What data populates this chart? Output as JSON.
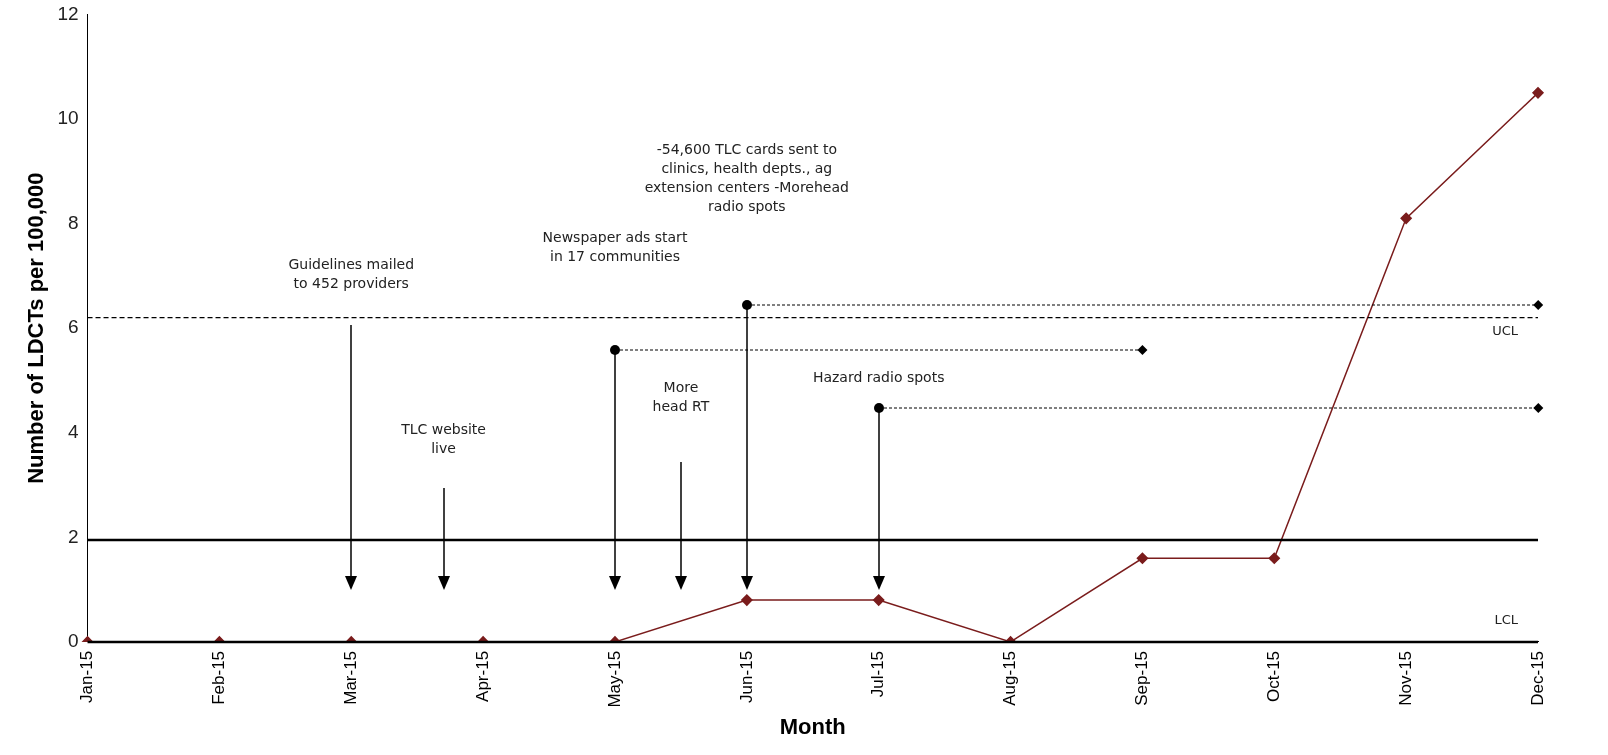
{
  "chart_data": {
    "type": "line",
    "xlabel": "Month",
    "ylabel": "Number of LDCTs per 100,000",
    "categories": [
      "Jan-15",
      "Feb-15",
      "Mar-15",
      "Apr-15",
      "May-15",
      "Jun-15",
      "Jul-15",
      "Aug-15",
      "Sep-15",
      "Oct-15",
      "Nov-15",
      "Dec-15"
    ],
    "series": [
      {
        "color": "#7a1c1c",
        "values": [
          0,
          0,
          0,
          0,
          0,
          0.8,
          0.8,
          0,
          1.6,
          1.6,
          8.1,
          10.5
        ]
      }
    ],
    "ylim": [
      0,
      12
    ],
    "yticks": [
      0,
      2,
      4,
      6,
      8,
      10,
      12
    ],
    "ref_lines": [
      {
        "axis": "y",
        "value": 6.2,
        "label": "UCL",
        "line_style": "dashed",
        "color": "#000000"
      },
      {
        "axis": "y",
        "value": 1.95,
        "label": null,
        "line_style": "solid",
        "color": "#000000"
      },
      {
        "axis": "y",
        "value": 0,
        "label": "LCL",
        "line_style": "solid",
        "color": "#000000"
      }
    ],
    "annotations": [
      "Guidelines mailed to 452 providers",
      "TLC website live",
      "Newspaper ads start in 17 communities",
      "More head RT",
      "-54,600 TLC cards sent to clinics, health depts., ag extension centers -Morehead radio spots",
      "Hazard radio spots"
    ],
    "marker": "diamond",
    "grid": false,
    "legend": false
  }
}
